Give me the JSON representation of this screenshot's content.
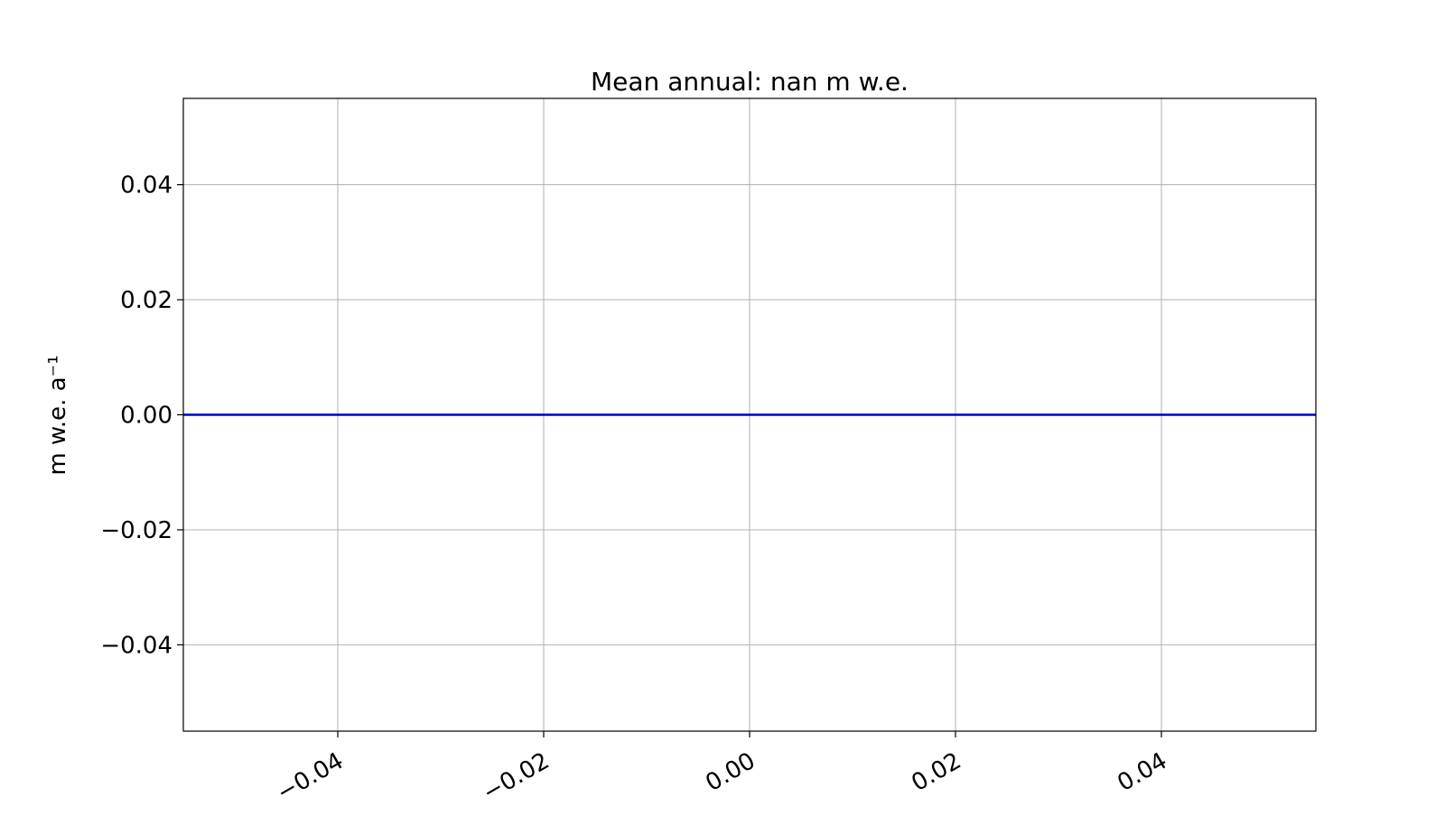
{
  "chart_data": {
    "type": "line",
    "title": "Mean annual: nan m w.e.",
    "xlabel": "",
    "ylabel": "m w.e. a⁻¹",
    "xlim": [
      -0.055,
      0.055
    ],
    "ylim": [
      -0.055,
      0.055
    ],
    "x_ticks": [
      -0.04,
      -0.02,
      0.0,
      0.02,
      0.04
    ],
    "x_tick_labels": [
      "−0.04",
      "−0.02",
      "0.00",
      "0.02",
      "0.04"
    ],
    "y_ticks": [
      0.04,
      0.02,
      0.0,
      -0.02,
      -0.04
    ],
    "y_tick_labels": [
      "0.04",
      "0.02",
      "0.00",
      "−0.02",
      "−0.04"
    ],
    "x_tick_rotation_deg": 30,
    "grid": true,
    "legend": "none",
    "series": [
      {
        "color": "#0000cc",
        "x": [
          -0.055,
          0.055
        ],
        "y": [
          0.0,
          0.0
        ]
      }
    ]
  }
}
